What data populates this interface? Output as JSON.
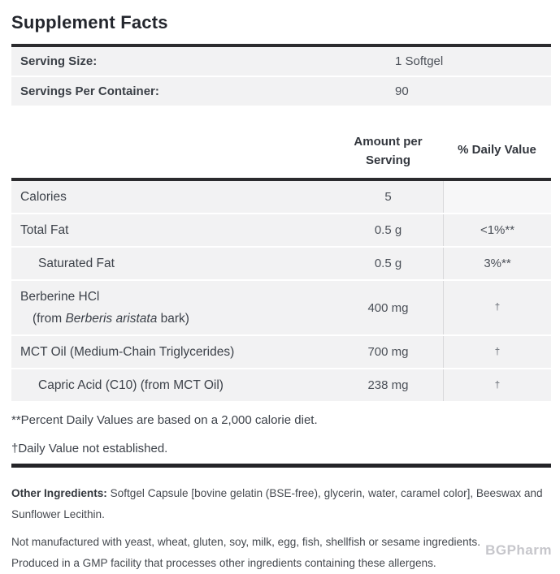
{
  "label": {
    "title": "Supplement Facts",
    "serving_rows": [
      {
        "label": "Serving Size:",
        "value": "1 Softgel"
      },
      {
        "label": "Servings Per Container:",
        "value": "90"
      }
    ],
    "column_headers": {
      "amount_line1": "Amount per",
      "amount_line2": "Serving",
      "daily_value": "% Daily Value"
    },
    "rows": [
      {
        "name": "Calories",
        "amount": "5",
        "dv": ""
      },
      {
        "name": "Total Fat",
        "amount": "0.5 g",
        "dv": "<1%**"
      },
      {
        "name": "Saturated Fat",
        "amount": "0.5 g",
        "dv": "3%**"
      },
      {
        "name": "Berberine HCl",
        "sub_prefix": "(from ",
        "sub_italic": "Berberis aristata",
        "sub_suffix": " bark)",
        "amount": "400 mg",
        "dv": "†"
      },
      {
        "name": "MCT Oil (Medium-Chain Triglycerides)",
        "amount": "700 mg",
        "dv": "†"
      },
      {
        "name": "Capric Acid (C10) (from MCT Oil)",
        "amount": "238 mg",
        "dv": "†"
      }
    ],
    "footnotes": [
      "**Percent Daily Values are based on a 2,000 calorie diet.",
      "†Daily Value not established."
    ],
    "other_ingredients": {
      "label": "Other Ingredients:",
      "text": "Softgel Capsule [bovine gelatin (BSE-free), glycerin, water, caramel color], Beeswax and Sunflower Lecithin."
    },
    "allergen_lines": [
      "Not manufactured with yeast, wheat, gluten, soy, milk, egg, fish, shellfish or sesame ingredients.",
      "Produced in a GMP facility that processes other ingredients containing these allergens."
    ],
    "watermark": "BGPharm",
    "colors": {
      "row_background": "#f2f2f3",
      "rule": "#2b2b2e",
      "divider": "#d9d9db",
      "text": "#3d424a",
      "watermark": "#c6c6cb"
    }
  }
}
